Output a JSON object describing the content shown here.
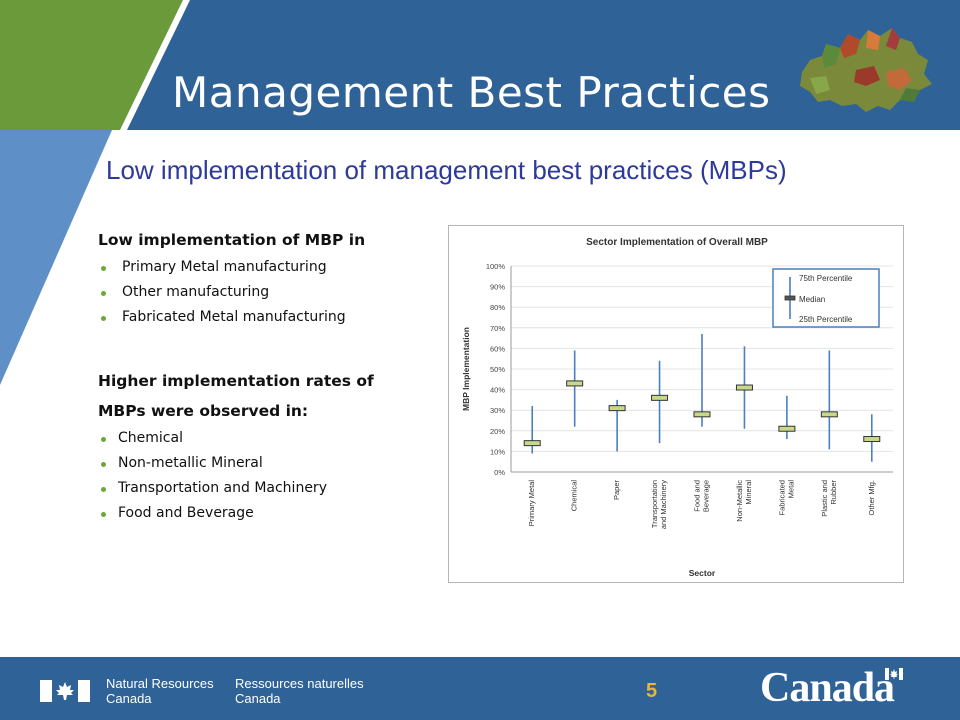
{
  "slide": {
    "title": "Management Best Practices",
    "subtitle": "Low implementation of management best practices (MBPs)",
    "page_number": "5"
  },
  "left_text": {
    "low_heading": "Low implementation of MBP in",
    "low_items": [
      "Primary Metal manufacturing",
      "Other manufacturing",
      "Fabricated Metal manufacturing"
    ],
    "high_heading_line1": "Higher implementation rates of",
    "high_heading_line2": "MBPs were observed in:",
    "high_items": [
      "Chemical",
      "Non-metallic Mineral",
      "Transportation and Machinery",
      "Food and Beverage"
    ]
  },
  "footer": {
    "dept_en_line1": "Natural Resources",
    "dept_en_line2": "Canada",
    "dept_fr_line1": "Ressources naturelles",
    "dept_fr_line2": "Canada",
    "wordmark": "Canada"
  },
  "colors": {
    "header_blue": "#2f6296",
    "header_green": "#6a9a3a",
    "side_blue": "#5e8fc6",
    "subtitle": "#2e3a9a",
    "bullet_green": "#6aa83a",
    "whisker_blue": "#4a7fc0",
    "median_green": "#c8d88a",
    "page_number": "#e8b640"
  },
  "chart_data": {
    "type": "boxplot",
    "title": "Sector Implementation of Overall MBP",
    "xlabel": "Sector",
    "ylabel": "MBP Implementation",
    "ylim": [
      0,
      100
    ],
    "y_ticks": [
      "0%",
      "10%",
      "20%",
      "30%",
      "40%",
      "50%",
      "60%",
      "70%",
      "80%",
      "90%",
      "100%"
    ],
    "legend": {
      "position": "top-right",
      "entries": [
        "75th Percentile",
        "Median",
        "25th Percentile"
      ]
    },
    "categories": [
      [
        "Primary Metal"
      ],
      [
        "Chemical"
      ],
      [
        "Paper"
      ],
      [
        "Transportation",
        "and Machinery"
      ],
      [
        "Food and",
        "Beverage"
      ],
      [
        "Non-Metallic",
        "Mineral"
      ],
      [
        "Fabricated",
        "Metal"
      ],
      [
        "Plastic and",
        "Rubber"
      ],
      [
        "Other Mfg."
      ]
    ],
    "p25": [
      9,
      22,
      10,
      14,
      22,
      21,
      16,
      11,
      5
    ],
    "median": [
      14,
      43,
      31,
      36,
      28,
      41,
      21,
      28,
      16
    ],
    "p75": [
      32,
      59,
      35,
      54,
      67,
      61,
      37,
      59,
      28
    ]
  }
}
